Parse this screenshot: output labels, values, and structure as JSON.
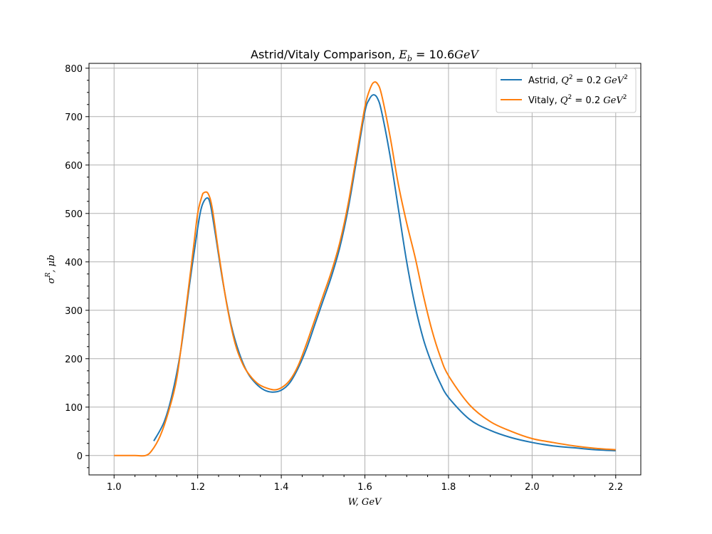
{
  "chart_data": {
    "type": "line",
    "title": {
      "prefix": "Astrid/Vitaly Comparison, ",
      "math_var": "E",
      "math_sub": "b",
      "math_rest": " = 10.6",
      "math_unit": "GeV"
    },
    "xlabel": "W, GeV",
    "ylabel": {
      "base": "σ",
      "sup": "R",
      "rest": ", μb"
    },
    "xlim": [
      0.94,
      2.26
    ],
    "ylim": [
      -40,
      810
    ],
    "x_ticks": [
      1.0,
      1.2,
      1.4,
      1.6,
      1.8,
      2.0,
      2.2
    ],
    "x_tick_labels": [
      "1.0",
      "1.2",
      "1.4",
      "1.6",
      "1.8",
      "2.0",
      "2.2"
    ],
    "y_ticks": [
      0,
      100,
      200,
      300,
      400,
      500,
      600,
      700,
      800
    ],
    "y_tick_labels": [
      "0",
      "100",
      "200",
      "300",
      "400",
      "500",
      "600",
      "700",
      "800"
    ],
    "grid": true,
    "legend_position": "top-right",
    "series": [
      {
        "name": "Astrid",
        "legend_math": "Q",
        "legend_sup": "2",
        "legend_rest": " = 0.2 ",
        "legend_unit": "GeV",
        "legend_unit_sup": "2",
        "color": "#1f77b4",
        "x": [
          1.095,
          1.12,
          1.14,
          1.16,
          1.18,
          1.2,
          1.21,
          1.222,
          1.23,
          1.24,
          1.26,
          1.28,
          1.3,
          1.32,
          1.34,
          1.36,
          1.38,
          1.4,
          1.42,
          1.44,
          1.46,
          1.48,
          1.5,
          1.52,
          1.54,
          1.56,
          1.58,
          1.6,
          1.61,
          1.62,
          1.63,
          1.64,
          1.66,
          1.68,
          1.7,
          1.72,
          1.74,
          1.76,
          1.78,
          1.8,
          1.85,
          1.9,
          1.95,
          2.0,
          2.05,
          2.1,
          2.15,
          2.2
        ],
        "y": [
          30,
          70,
          130,
          220,
          350,
          470,
          515,
          532,
          520,
          470,
          360,
          270,
          210,
          170,
          148,
          135,
          131,
          135,
          150,
          180,
          220,
          270,
          320,
          370,
          430,
          510,
          610,
          710,
          735,
          745,
          738,
          710,
          620,
          510,
          400,
          310,
          240,
          190,
          150,
          120,
          75,
          52,
          37,
          27,
          20,
          16,
          12,
          10
        ]
      },
      {
        "name": "Vitaly",
        "legend_math": "Q",
        "legend_sup": "2",
        "legend_rest": " = 0.2 ",
        "legend_unit": "GeV",
        "legend_unit_sup": "2",
        "color": "#ff7f0e",
        "x": [
          1.0,
          1.05,
          1.075,
          1.09,
          1.11,
          1.13,
          1.15,
          1.17,
          1.19,
          1.2,
          1.21,
          1.215,
          1.225,
          1.235,
          1.25,
          1.27,
          1.29,
          1.31,
          1.33,
          1.35,
          1.38,
          1.4,
          1.42,
          1.44,
          1.46,
          1.48,
          1.5,
          1.52,
          1.54,
          1.56,
          1.58,
          1.6,
          1.61,
          1.62,
          1.63,
          1.64,
          1.66,
          1.68,
          1.7,
          1.72,
          1.74,
          1.76,
          1.78,
          1.8,
          1.85,
          1.9,
          1.95,
          2.0,
          2.05,
          2.1,
          2.15,
          2.2
        ],
        "y": [
          0,
          0,
          0,
          10,
          40,
          90,
          160,
          290,
          430,
          500,
          535,
          543,
          541,
          510,
          420,
          310,
          230,
          185,
          160,
          145,
          136,
          140,
          155,
          185,
          230,
          280,
          330,
          380,
          440,
          520,
          620,
          720,
          752,
          770,
          768,
          745,
          660,
          560,
          480,
          410,
          330,
          260,
          205,
          165,
          105,
          70,
          50,
          35,
          27,
          20,
          15,
          12
        ]
      }
    ]
  }
}
